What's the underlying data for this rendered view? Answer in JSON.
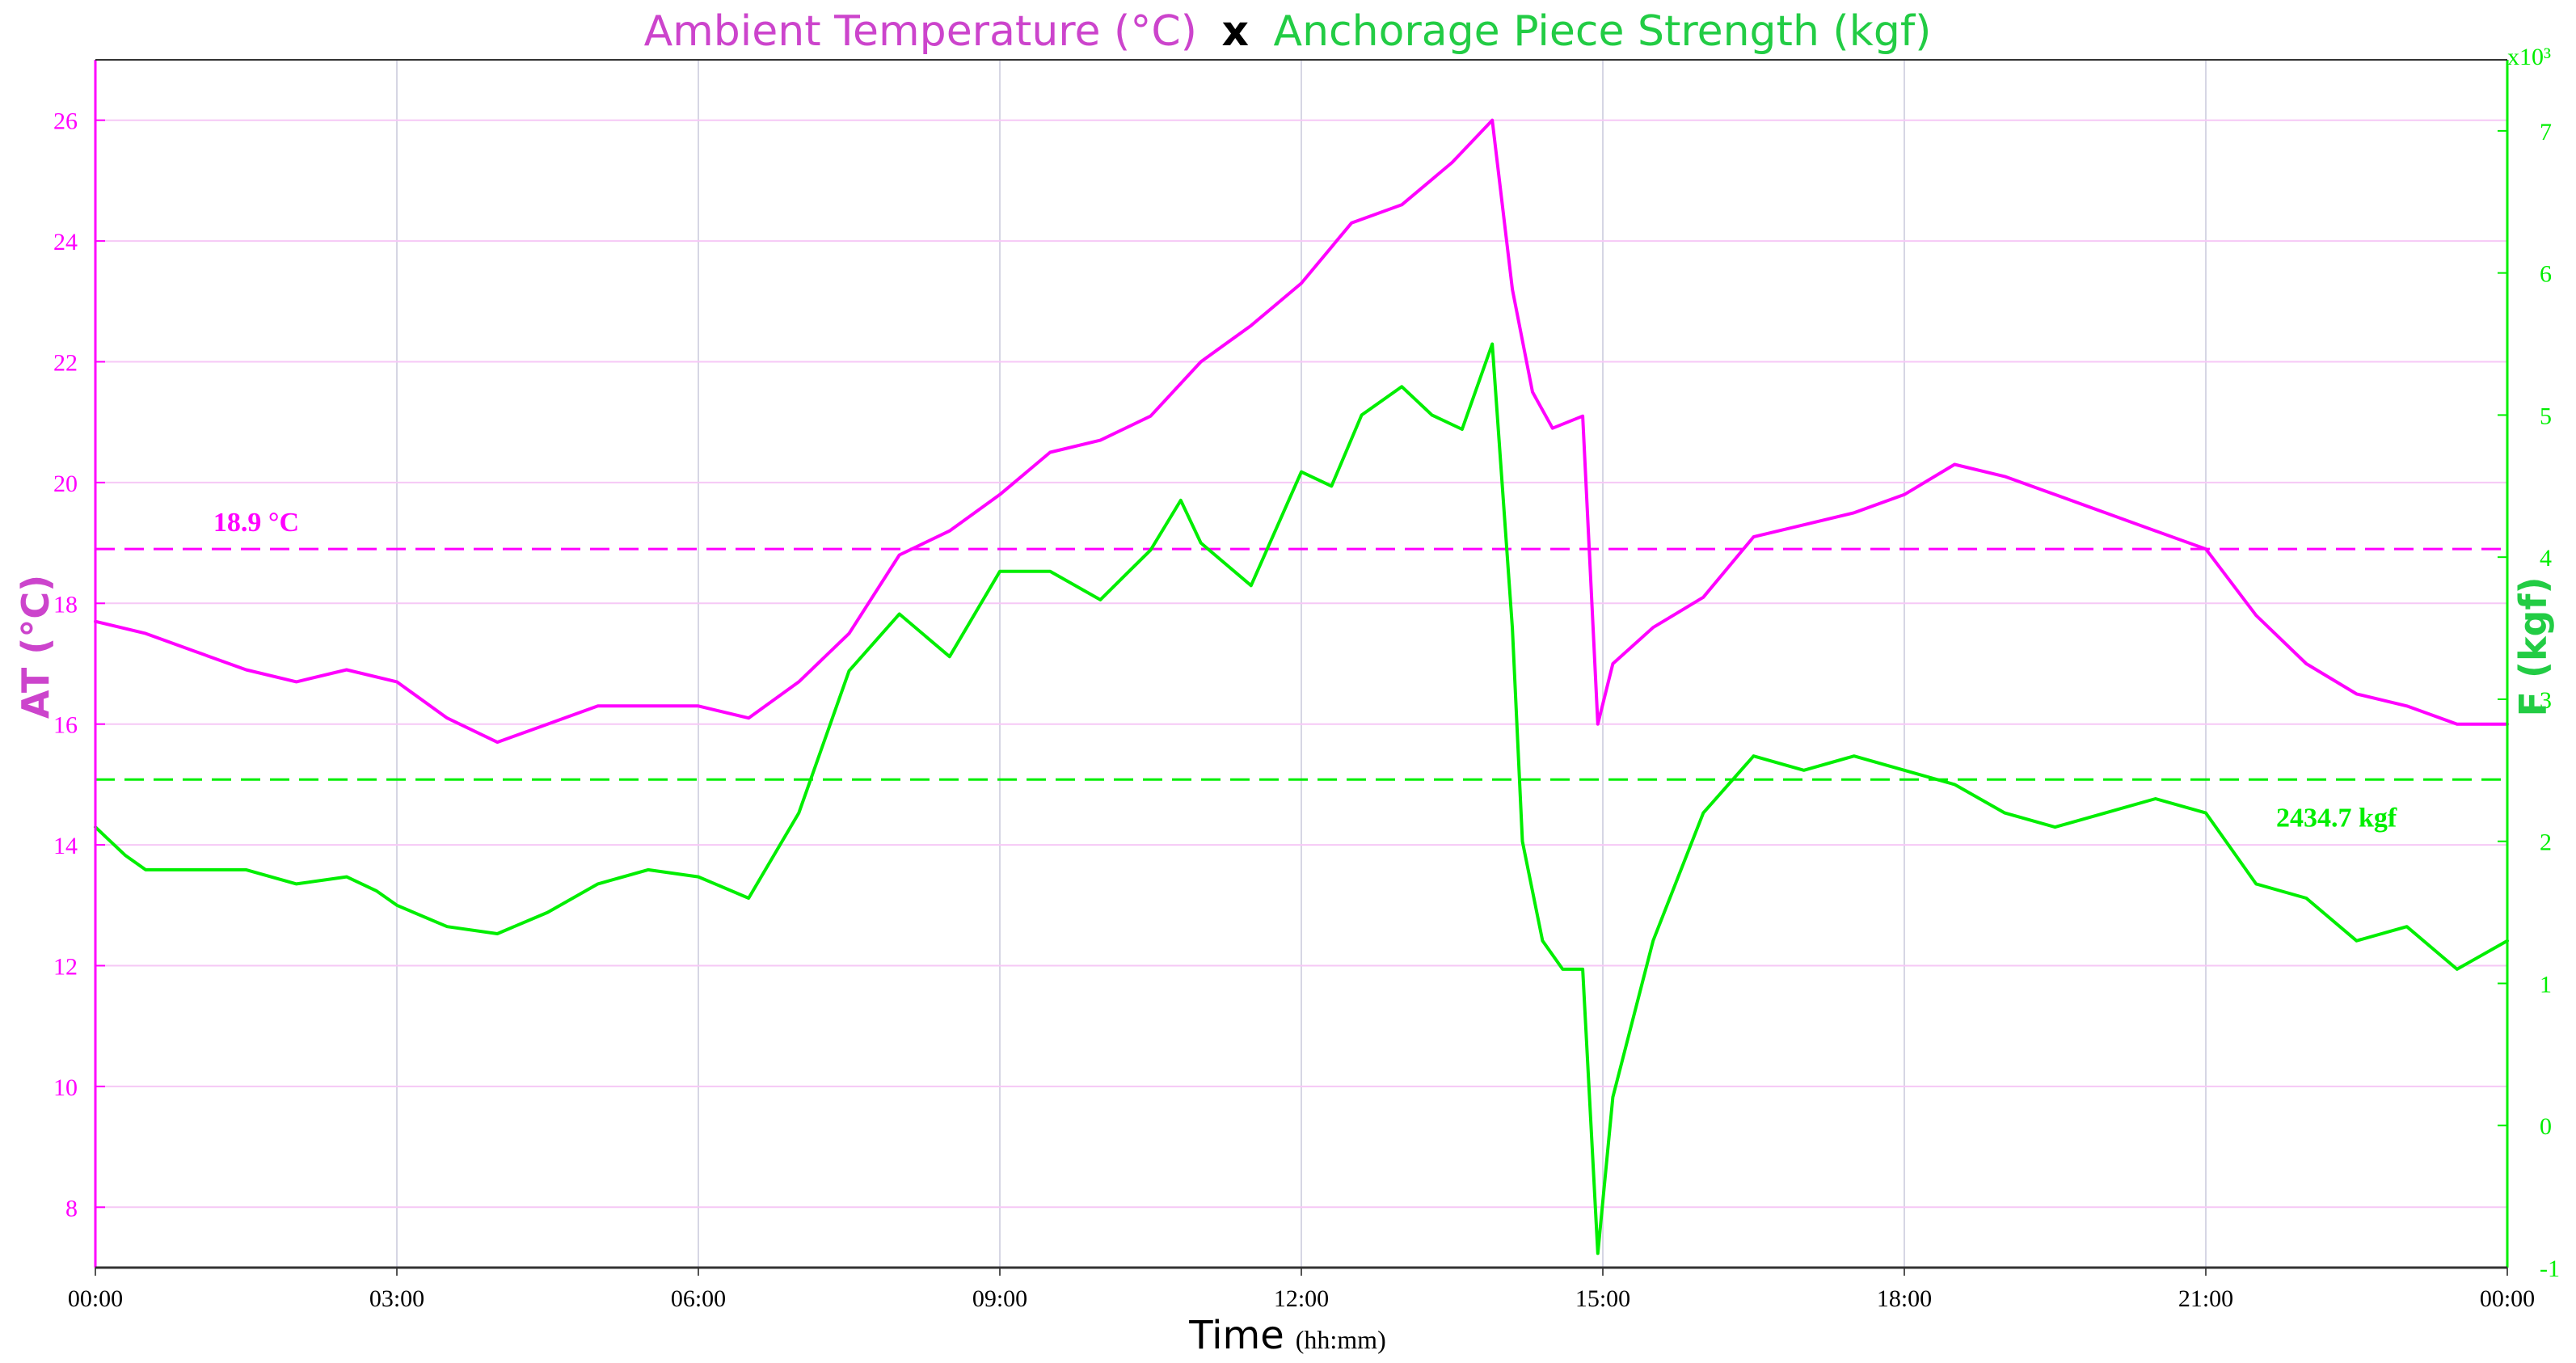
{
  "chart_data": {
    "type": "line",
    "title": {
      "part1": "Ambient Temperature (°C)",
      "sep": "x",
      "part2": "Anchorage Piece Strength (kgf)"
    },
    "xlabel": "Time",
    "xlabel_unit": "(hh:mm)",
    "x_ticks": [
      "00:00",
      "03:00",
      "06:00",
      "09:00",
      "12:00",
      "15:00",
      "18:00",
      "21:00",
      "00:00"
    ],
    "x_range_hours": [
      0,
      24
    ],
    "y_left": {
      "label": "AT (°C)",
      "range": [
        7,
        27
      ],
      "ticks": [
        8,
        10,
        12,
        14,
        16,
        18,
        20,
        22,
        24,
        26
      ]
    },
    "y_right": {
      "label": "F (kgf)",
      "multiplier": "x10³",
      "range": [
        -1,
        7.5
      ],
      "ticks": [
        -1,
        0,
        1,
        2,
        3,
        4,
        5,
        6,
        7
      ]
    },
    "grid": true,
    "colors": {
      "temperature": "#ff00ff",
      "strength": "#00ee00",
      "title_temperature": "#cc44cc",
      "title_strength": "#22cc44"
    },
    "reference_lines": [
      {
        "axis": "left",
        "value": 18.9,
        "label": "18.9 °C"
      },
      {
        "axis": "right",
        "value": 2.4347,
        "label": "2434.7 kgf"
      }
    ],
    "series": [
      {
        "name": "Ambient Temperature (°C)",
        "axis": "left",
        "x": [
          0,
          0.5,
          1,
          1.5,
          2,
          2.5,
          3,
          3.5,
          4,
          4.5,
          5,
          5.5,
          6,
          6.5,
          7,
          7.5,
          8,
          8.5,
          9,
          9.5,
          10,
          10.5,
          11,
          11.5,
          12,
          12.5,
          13,
          13.5,
          13.9,
          14.1,
          14.3,
          14.5,
          14.8,
          14.95,
          15.1,
          15.5,
          16,
          16.5,
          17,
          17.5,
          18,
          18.5,
          19,
          19.5,
          20,
          20.5,
          21,
          21.5,
          22,
          22.5,
          23,
          23.5,
          24
        ],
        "y": [
          17.7,
          17.5,
          17.2,
          16.9,
          16.7,
          16.9,
          16.7,
          16.1,
          15.7,
          16.0,
          16.3,
          16.3,
          16.3,
          16.1,
          16.7,
          17.5,
          18.8,
          19.2,
          19.8,
          20.5,
          20.7,
          21.1,
          22.0,
          22.6,
          23.3,
          24.3,
          24.6,
          25.3,
          26.0,
          23.2,
          21.5,
          20.9,
          21.1,
          16.0,
          17.0,
          17.6,
          18.1,
          19.1,
          19.3,
          19.5,
          19.8,
          20.3,
          20.1,
          19.8,
          19.5,
          19.2,
          18.9,
          17.8,
          17.0,
          16.5,
          16.3,
          16.0,
          16.0
        ]
      },
      {
        "name": "Anchorage Piece Strength (kgf)",
        "axis": "right",
        "x": [
          0,
          0.3,
          0.5,
          1,
          1.5,
          2,
          2.5,
          2.8,
          3,
          3.5,
          4,
          4.5,
          5,
          5.5,
          6,
          6.5,
          7,
          7.5,
          8,
          8.5,
          9,
          9.5,
          10,
          10.5,
          10.8,
          11,
          11.5,
          12,
          12.3,
          12.6,
          13,
          13.3,
          13.6,
          13.9,
          14.1,
          14.2,
          14.4,
          14.6,
          14.8,
          14.95,
          15.1,
          15.5,
          16,
          16.5,
          17,
          17.5,
          18,
          18.5,
          19,
          19.5,
          20,
          20.5,
          21,
          21.5,
          22,
          22.5,
          23,
          23.5,
          24
        ],
        "y": [
          2.1,
          1.9,
          1.8,
          1.8,
          1.8,
          1.7,
          1.75,
          1.65,
          1.55,
          1.4,
          1.35,
          1.5,
          1.7,
          1.8,
          1.75,
          1.6,
          2.2,
          3.2,
          3.6,
          3.3,
          3.9,
          3.9,
          3.7,
          4.05,
          4.4,
          4.1,
          3.8,
          4.6,
          4.5,
          5.0,
          5.2,
          5.0,
          4.9,
          5.5,
          3.5,
          2.0,
          1.3,
          1.1,
          1.1,
          -0.9,
          0.2,
          1.3,
          2.2,
          2.6,
          2.5,
          2.6,
          2.5,
          2.4,
          2.2,
          2.1,
          2.2,
          2.3,
          2.2,
          1.7,
          1.6,
          1.3,
          1.4,
          1.1,
          1.3
        ]
      }
    ]
  }
}
